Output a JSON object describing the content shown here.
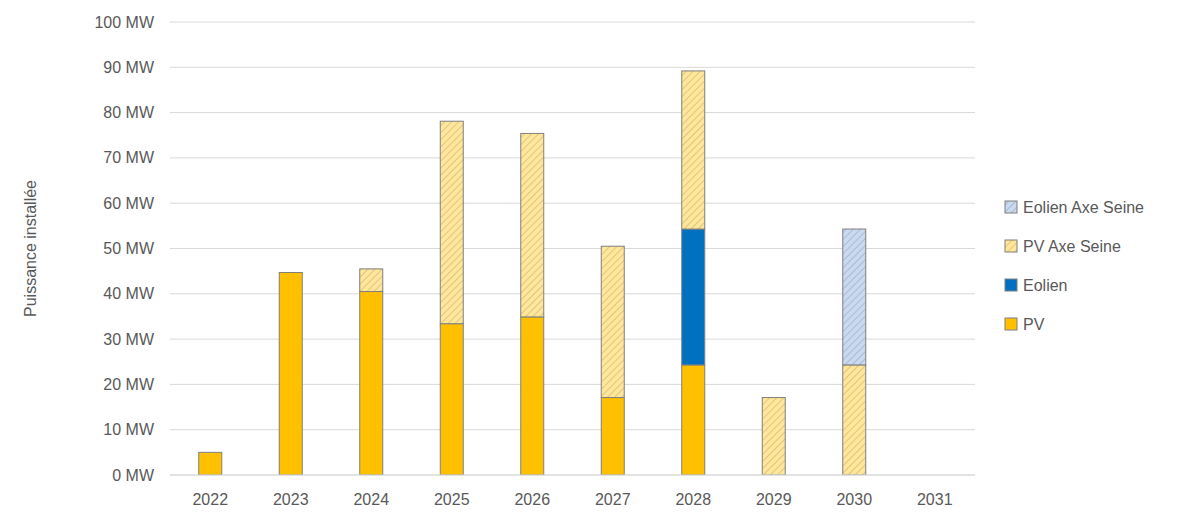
{
  "chart_data": {
    "type": "bar",
    "stacked": true,
    "grid": true,
    "legend": "right",
    "y_label": "Puissance installée",
    "categories": [
      "2022",
      "2023",
      "2024",
      "2025",
      "2026",
      "2027",
      "2028",
      "2029",
      "2030",
      "2031"
    ],
    "series": [
      {
        "name": "PV",
        "color": "#ffc000",
        "values": [
          5,
          44.7,
          40.5,
          33.4,
          34.9,
          17.1,
          24.3,
          null,
          null,
          null
        ]
      },
      {
        "name": "Eolien",
        "color": "#0070c0",
        "values": [
          null,
          null,
          null,
          null,
          null,
          null,
          30,
          null,
          null,
          null
        ]
      },
      {
        "name": "PV Axe Seine",
        "color": "#ffe699",
        "values": [
          null,
          null,
          5,
          44.7,
          40.5,
          33.4,
          34.9,
          17.1,
          24.3,
          null
        ]
      },
      {
        "name": "Eolien Axe Seine",
        "color": "#c9d9f0",
        "values": [
          null,
          null,
          null,
          null,
          null,
          null,
          null,
          null,
          30,
          null
        ]
      }
    ],
    "ylim": [
      0,
      100
    ],
    "yticks": [
      {
        "value": 0,
        "label": "0 MW"
      },
      {
        "value": 10,
        "label": "10 MW"
      },
      {
        "value": 20,
        "label": "20 MW"
      },
      {
        "value": 30,
        "label": "30 MW"
      },
      {
        "value": 40,
        "label": "40 MW"
      },
      {
        "value": 50,
        "label": "50 MW"
      },
      {
        "value": 60,
        "label": "60 MW"
      },
      {
        "value": 70,
        "label": "70 MW"
      },
      {
        "value": 80,
        "label": "80 MW"
      },
      {
        "value": 90,
        "label": "90 MW"
      },
      {
        "value": 100,
        "label": "100 MW"
      }
    ]
  }
}
